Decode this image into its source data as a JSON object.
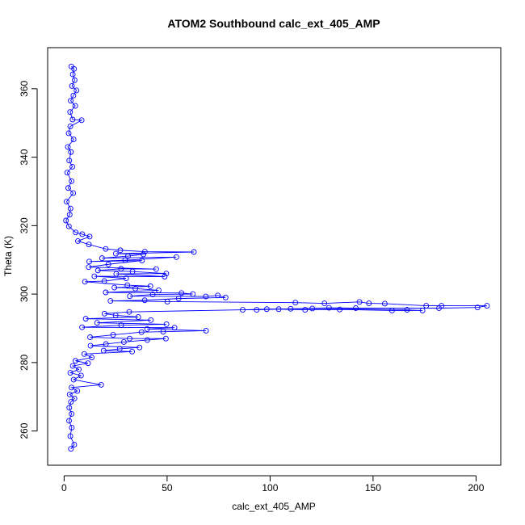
{
  "chart_data": {
    "type": "scatter",
    "title": "ATOM2 Southbound calc_ext_405_AMP",
    "xlabel": "calc_ext_405_AMP",
    "ylabel": "Theta (K)",
    "xlim": [
      -8,
      212
    ],
    "ylim": [
      250,
      372
    ],
    "xticks": [
      0,
      50,
      100,
      150,
      200
    ],
    "yticks": [
      260,
      280,
      300,
      320,
      340,
      360
    ],
    "grid": false,
    "legend": "none",
    "series": [
      {
        "marker": "open-circle",
        "line": true,
        "points": [
          [
            3.5,
            366.5
          ],
          [
            4.8,
            365.8
          ],
          [
            4.2,
            364.2
          ],
          [
            5.1,
            362.5
          ],
          [
            3.8,
            360.8
          ],
          [
            6.0,
            359.5
          ],
          [
            4.5,
            358.0
          ],
          [
            3.2,
            356.5
          ],
          [
            5.4,
            355.0
          ],
          [
            2.9,
            353.2
          ],
          [
            4.1,
            351.0
          ],
          [
            8.5,
            350.8
          ],
          [
            3.0,
            349.0
          ],
          [
            2.2,
            347.0
          ],
          [
            4.6,
            345.2
          ],
          [
            1.8,
            343.0
          ],
          [
            3.3,
            341.5
          ],
          [
            2.5,
            339.0
          ],
          [
            4.0,
            337.2
          ],
          [
            1.5,
            335.5
          ],
          [
            3.6,
            333.0
          ],
          [
            2.0,
            331.0
          ],
          [
            4.4,
            329.5
          ],
          [
            1.2,
            327.0
          ],
          [
            3.1,
            325.0
          ],
          [
            2.7,
            323.2
          ],
          [
            0.9,
            321.5
          ],
          [
            2.3,
            319.8
          ],
          [
            5.6,
            318.0
          ],
          [
            8.8,
            317.5
          ],
          [
            12.4,
            316.8
          ],
          [
            6.7,
            315.5
          ],
          [
            12.0,
            314.5
          ],
          [
            20.2,
            313.2
          ],
          [
            27.3,
            312.8
          ],
          [
            39.2,
            312.4
          ],
          [
            63.0,
            312.3
          ],
          [
            25.1,
            311.8
          ],
          [
            38.5,
            311.6
          ],
          [
            31.0,
            311.1
          ],
          [
            18.4,
            310.5
          ],
          [
            54.5,
            310.8
          ],
          [
            29.6,
            309.9
          ],
          [
            12.2,
            309.5
          ],
          [
            37.8,
            309.8
          ],
          [
            21.5,
            308.7
          ],
          [
            11.9,
            307.9
          ],
          [
            44.7,
            307.3
          ],
          [
            27.6,
            307.4
          ],
          [
            16.4,
            306.9
          ],
          [
            33.2,
            306.6
          ],
          [
            49.6,
            306.0
          ],
          [
            25.3,
            305.9
          ],
          [
            48.8,
            305.1
          ],
          [
            14.7,
            305.2
          ],
          [
            30.1,
            304.6
          ],
          [
            19.5,
            303.8
          ],
          [
            10.1,
            303.6
          ],
          [
            30.7,
            302.6
          ],
          [
            41.9,
            302.3
          ],
          [
            24.4,
            301.9
          ],
          [
            34.6,
            301.6
          ],
          [
            45.9,
            301.1
          ],
          [
            20.2,
            300.5
          ],
          [
            57.0,
            300.3
          ],
          [
            62.5,
            300.0
          ],
          [
            43.0,
            299.9
          ],
          [
            31.9,
            299.4
          ],
          [
            68.8,
            299.3
          ],
          [
            74.6,
            299.6
          ],
          [
            78.4,
            299.0
          ],
          [
            55.6,
            298.7
          ],
          [
            39.1,
            298.2
          ],
          [
            22.5,
            298.0
          ],
          [
            50.1,
            297.8
          ],
          [
            112.3,
            297.5
          ],
          [
            126.4,
            297.3
          ],
          [
            143.4,
            297.7
          ],
          [
            148.0,
            297.3
          ],
          [
            155.7,
            297.2
          ],
          [
            175.8,
            296.6
          ],
          [
            183.2,
            296.6
          ],
          [
            205.3,
            296.6
          ],
          [
            200.7,
            296.1
          ],
          [
            182.0,
            295.9
          ],
          [
            141.6,
            295.9
          ],
          [
            128.6,
            296.0
          ],
          [
            110.0,
            295.7
          ],
          [
            98.4,
            295.6
          ],
          [
            86.7,
            295.4
          ],
          [
            93.5,
            295.4
          ],
          [
            104.2,
            295.6
          ],
          [
            117.0,
            295.4
          ],
          [
            133.8,
            295.5
          ],
          [
            159.2,
            295.2
          ],
          [
            174.0,
            295.2
          ],
          [
            166.5,
            295.4
          ],
          [
            120.5,
            295.8
          ],
          [
            31.6,
            294.8
          ],
          [
            19.6,
            294.3
          ],
          [
            25.0,
            293.8
          ],
          [
            36.0,
            293.3
          ],
          [
            10.5,
            292.8
          ],
          [
            42.1,
            292.4
          ],
          [
            16.0,
            291.6
          ],
          [
            49.7,
            291.2
          ],
          [
            27.7,
            290.9
          ],
          [
            8.7,
            290.3
          ],
          [
            53.6,
            290.2
          ],
          [
            40.3,
            289.8
          ],
          [
            68.9,
            289.3
          ],
          [
            48.1,
            289.0
          ],
          [
            37.6,
            288.9
          ],
          [
            23.8,
            288.1
          ],
          [
            12.6,
            287.4
          ],
          [
            31.8,
            287.0
          ],
          [
            49.4,
            287.0
          ],
          [
            40.4,
            286.6
          ],
          [
            29.0,
            286.0
          ],
          [
            20.3,
            285.4
          ],
          [
            12.8,
            284.9
          ],
          [
            36.6,
            284.4
          ],
          [
            27.0,
            284.0
          ],
          [
            19.2,
            283.5
          ],
          [
            33.0,
            283.2
          ],
          [
            9.8,
            282.5
          ],
          [
            13.4,
            281.5
          ],
          [
            5.5,
            280.5
          ],
          [
            11.6,
            279.8
          ],
          [
            4.2,
            279.0
          ],
          [
            7.1,
            278.0
          ],
          [
            3.0,
            277.0
          ],
          [
            8.2,
            276.2
          ],
          [
            4.6,
            275.0
          ],
          [
            18.0,
            273.5
          ],
          [
            3.6,
            272.7
          ],
          [
            6.4,
            271.7
          ],
          [
            2.7,
            270.7
          ],
          [
            5.0,
            269.5
          ],
          [
            3.3,
            268.5
          ],
          [
            2.5,
            266.8
          ],
          [
            3.6,
            265.0
          ],
          [
            2.4,
            263.0
          ],
          [
            3.7,
            261.0
          ],
          [
            3.0,
            258.5
          ],
          [
            4.9,
            256.0
          ],
          [
            3.3,
            254.8
          ]
        ]
      }
    ]
  }
}
